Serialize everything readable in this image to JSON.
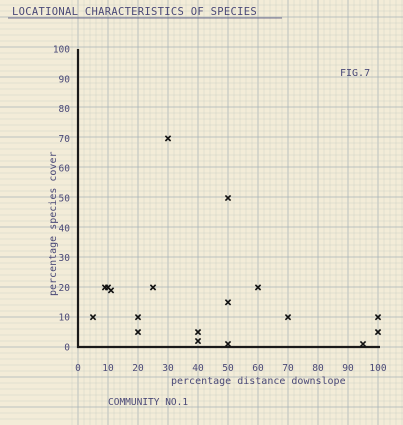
{
  "heading": "LOCATIONAL CHARACTERISTICS OF SPECIES",
  "fig_label": "FIG.7",
  "caption": "COMMUNITY NO.1",
  "chart_data": {
    "type": "scatter",
    "xlabel": "percentage distance downslope",
    "ylabel": "percentage species cover",
    "xlim": [
      0,
      100
    ],
    "ylim": [
      0,
      100
    ],
    "x_ticks": [
      "0",
      "10",
      "20",
      "30",
      "40",
      "50",
      "60",
      "70",
      "80",
      "90",
      "100"
    ],
    "y_ticks": [
      "0",
      "10",
      "20",
      "30",
      "40",
      "50",
      "60",
      "70",
      "80",
      "90",
      "100"
    ],
    "grid": true,
    "marker": "x",
    "points": [
      {
        "x": 5,
        "y": 10
      },
      {
        "x": 9,
        "y": 20
      },
      {
        "x": 10,
        "y": 20
      },
      {
        "x": 11,
        "y": 19
      },
      {
        "x": 20,
        "y": 10
      },
      {
        "x": 20,
        "y": 5
      },
      {
        "x": 25,
        "y": 20
      },
      {
        "x": 30,
        "y": 70
      },
      {
        "x": 40,
        "y": 5
      },
      {
        "x": 40,
        "y": 2
      },
      {
        "x": 50,
        "y": 50
      },
      {
        "x": 50,
        "y": 15
      },
      {
        "x": 50,
        "y": 1
      },
      {
        "x": 60,
        "y": 20
      },
      {
        "x": 70,
        "y": 10
      },
      {
        "x": 95,
        "y": 1
      },
      {
        "x": 100,
        "y": 10
      },
      {
        "x": 100,
        "y": 5
      }
    ]
  }
}
